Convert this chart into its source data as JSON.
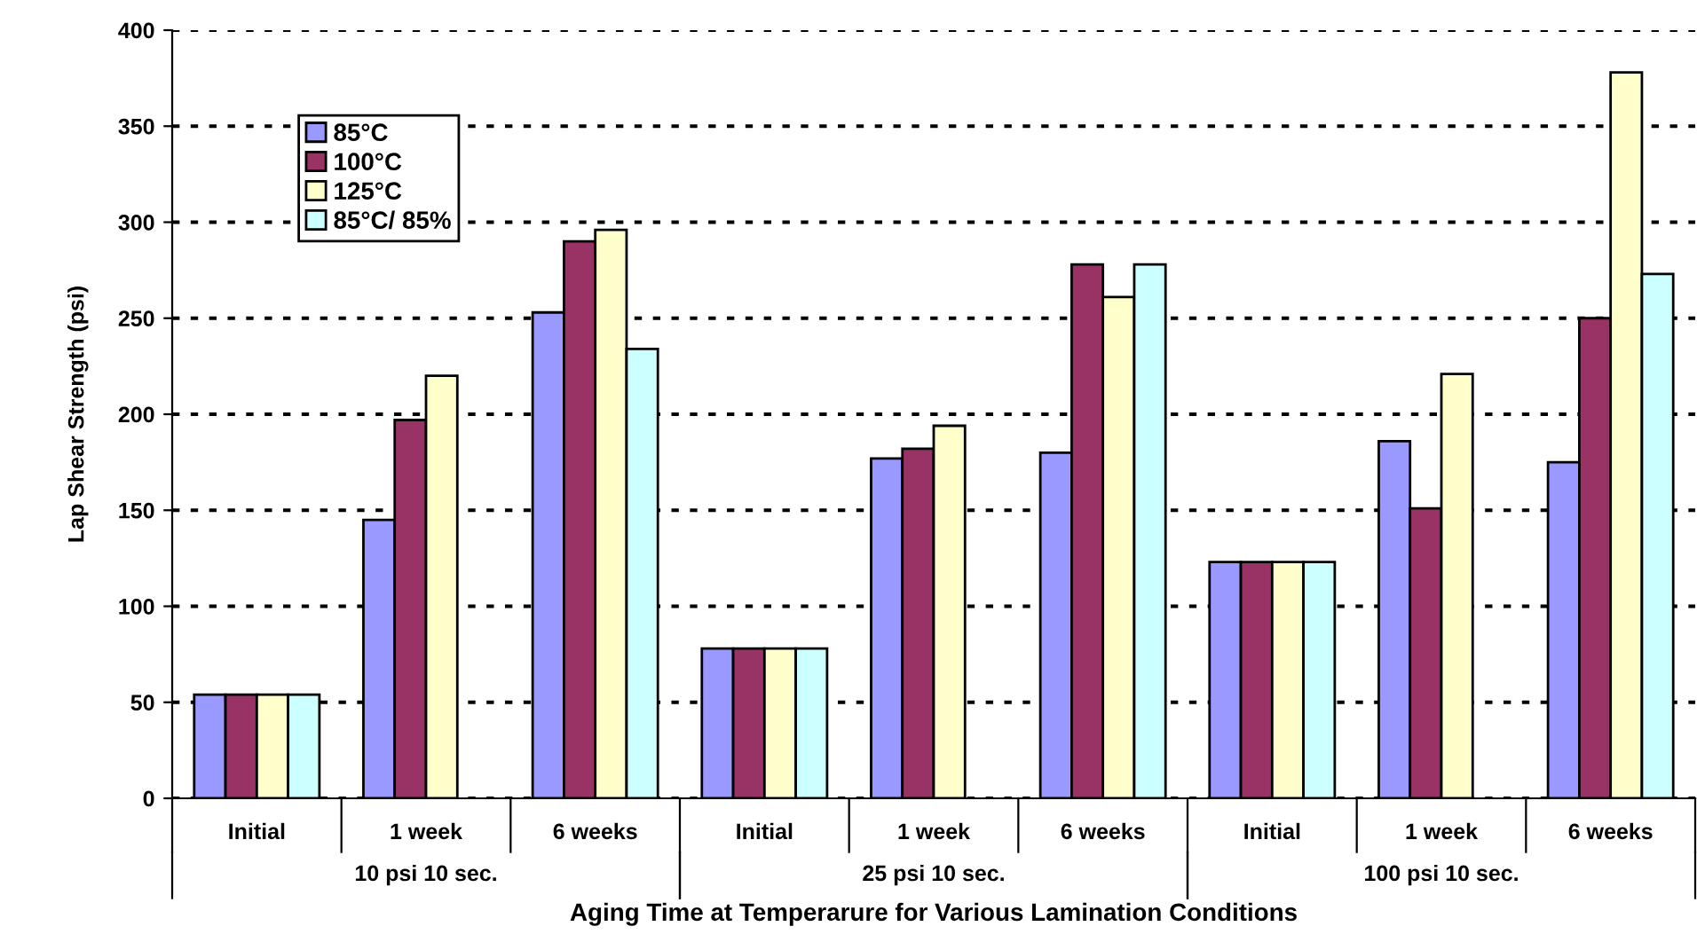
{
  "chart_data": {
    "type": "bar",
    "xlabel": "Aging Time at Temperarure for Various Lamination Conditions",
    "ylabel": "Lap Shear Strength (psi)",
    "categories": [
      "Initial",
      "1 week",
      "6 weeks",
      "Initial",
      "1 week",
      "6 weeks",
      "Initial",
      "1 week",
      "6 weeks"
    ],
    "series": [
      {
        "name": "85°C",
        "color": "#9999ff",
        "values": [
          54,
          145,
          253,
          78,
          177,
          180,
          123,
          186,
          175
        ]
      },
      {
        "name": "100°C",
        "color": "#993366",
        "values": [
          54,
          197,
          290,
          78,
          182,
          278,
          123,
          151,
          250
        ]
      },
      {
        "name": "125°C",
        "color": "#ffffcc",
        "values": [
          54,
          220,
          296,
          78,
          194,
          261,
          123,
          221,
          378
        ]
      },
      {
        "name": "85°C/ 85%",
        "color": "#ccffff",
        "values": [
          54,
          null,
          234,
          78,
          null,
          278,
          123,
          null,
          273
        ]
      }
    ],
    "annotations": [
      "10 psi 10 sec.",
      "25 psi 10 sec.",
      "100 psi 10 sec."
    ],
    "ylim": [
      0,
      400
    ],
    "yticks": [
      0,
      50,
      100,
      150,
      200,
      250,
      300,
      350,
      400
    ],
    "grid": "y",
    "legend": "top left"
  }
}
